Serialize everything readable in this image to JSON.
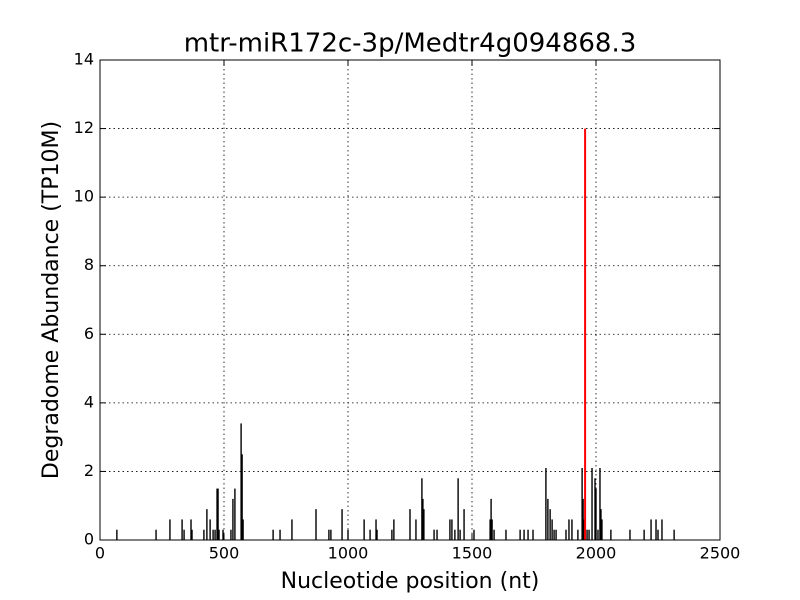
{
  "chart_data": {
    "type": "stem",
    "title": "mtr-miR172c-3p/Medtr4g094868.3",
    "x_label": "Nucleotide position (nt)",
    "y_label": "Degradome Abundance (TP10M)",
    "xlim": [
      0,
      2500
    ],
    "ylim": [
      0,
      14
    ],
    "xticks": [
      0,
      500,
      1000,
      1500,
      2000,
      2500
    ],
    "yticks": [
      0,
      2,
      4,
      6,
      8,
      10,
      12,
      14
    ],
    "grid": true,
    "series": [
      {
        "color": "#000000",
        "x": [
          68,
          226,
          282,
          331,
          339,
          367,
          371,
          419,
          431,
          444,
          456,
          464,
          472,
          476,
          480,
          496,
          528,
          536,
          544,
          569,
          573,
          577,
          698,
          726,
          774,
          871,
          923,
          931,
          976,
          1000,
          1065,
          1089,
          1113,
          1117,
          1177,
          1185,
          1250,
          1274,
          1298,
          1302,
          1306,
          1347,
          1359,
          1411,
          1419,
          1431,
          1444,
          1452,
          1468,
          1508,
          1573,
          1577,
          1581,
          1589,
          1637,
          1694,
          1710,
          1726,
          1746,
          1798,
          1806,
          1815,
          1823,
          1831,
          1839,
          1879,
          1891,
          1903,
          1927,
          1944,
          1948,
          1952,
          1964,
          1972,
          1984,
          1996,
          2000,
          2008,
          2016,
          2020,
          2024,
          2060,
          2137,
          2194,
          2222,
          2242,
          2250,
          2266,
          2315
        ],
        "values": [
          0.3,
          0.3,
          0.6,
          0.6,
          0.3,
          0.6,
          0.3,
          0.3,
          0.9,
          0.6,
          0.3,
          0.3,
          1.5,
          1.5,
          0.3,
          0.3,
          0.3,
          1.2,
          1.5,
          3.4,
          2.5,
          0.6,
          0.3,
          0.3,
          0.6,
          0.9,
          0.3,
          0.3,
          0.9,
          0.3,
          0.6,
          0.3,
          0.6,
          0.3,
          0.3,
          0.6,
          0.9,
          0.6,
          1.8,
          1.2,
          0.9,
          0.3,
          0.3,
          0.6,
          0.6,
          0.3,
          1.8,
          0.3,
          0.9,
          0.3,
          0.6,
          1.2,
          0.6,
          0.3,
          0.3,
          0.3,
          0.3,
          0.3,
          0.3,
          2.1,
          1.2,
          0.9,
          0.6,
          0.3,
          0.3,
          0.3,
          0.6,
          0.6,
          0.3,
          2.1,
          1.2,
          0.6,
          0.3,
          0.3,
          2.1,
          1.8,
          1.5,
          0.3,
          2.1,
          0.9,
          0.6,
          0.3,
          0.3,
          0.3,
          0.6,
          0.6,
          0.3,
          0.6,
          0.3
        ]
      },
      {
        "color": "#ff0000",
        "x": [
          1956
        ],
        "values": [
          12
        ]
      }
    ]
  }
}
